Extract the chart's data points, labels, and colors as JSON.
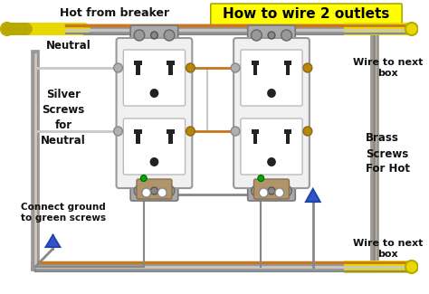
{
  "bg_color": "#ffffff",
  "frame_color": "#cccccc",
  "title": "How to wire 2 outlets",
  "title_bg": "#ffff00",
  "title_color": "#000000",
  "title_fontsize": 11,
  "labels": {
    "hot_from_breaker": "Hot from breaker",
    "neutral": "Neutral",
    "silver_screws": "Silver\nScrews\nfor\nNeutral",
    "connect_ground": "Connect ground\nto green screws",
    "brass_screws": "Brass\nScrews\nFor Hot",
    "wire_to_next_box_top": "Wire to next\nbox",
    "wire_to_next_box_bot": "Wire to next\nbox"
  },
  "outlet_face": "#f0f0f0",
  "outlet_edge": "#999999",
  "wire_hot": "#c87820",
  "wire_neutral": "#c8c8c8",
  "wire_ground": "#888888",
  "wire_yellow": "#e8d800",
  "wire_yellow_dark": "#b8a800",
  "screw_silver": "#b0b0b0",
  "screw_brass": "#b8860b",
  "screw_green": "#228B22",
  "connector_color": "#3355cc",
  "text_color": "#111111",
  "slot_color": "#333333",
  "bracket_color": "#aaaaaa",
  "bracket_edge": "#777777",
  "ground_tab_color": "#b0956a"
}
